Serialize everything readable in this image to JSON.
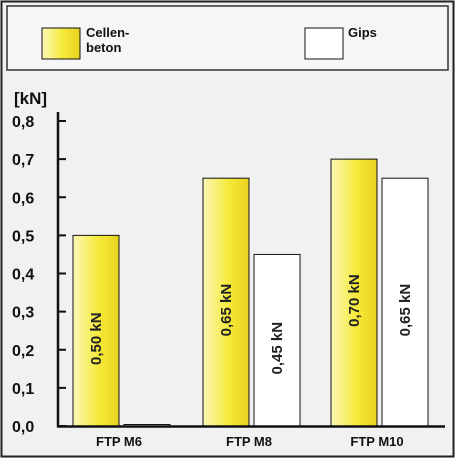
{
  "chart_data": {
    "type": "bar",
    "title": "",
    "xlabel": "",
    "ylabel": "[kN]",
    "ylim": [
      0,
      0.8
    ],
    "yticks": [
      "0,0",
      "0,1",
      "0,2",
      "0,3",
      "0,4",
      "0,5",
      "0,6",
      "0,7",
      "0,8"
    ],
    "categories": [
      "FTP M6",
      "FTP M8",
      "FTP M10"
    ],
    "legend_position": "top",
    "series": [
      {
        "name_lines": [
          "Cellen-",
          "beton"
        ],
        "color": "#f6ea3a",
        "values": [
          0.5,
          0.65,
          0.7
        ],
        "data_labels": [
          "0,50 kN",
          "0,65 kN",
          "0,70 kN"
        ]
      },
      {
        "name_lines": [
          "Gips"
        ],
        "color": "#ffffff",
        "values": [
          0.0,
          0.45,
          0.65
        ],
        "data_labels": [
          "",
          "0,45 kN",
          "0,65 kN"
        ]
      }
    ]
  }
}
